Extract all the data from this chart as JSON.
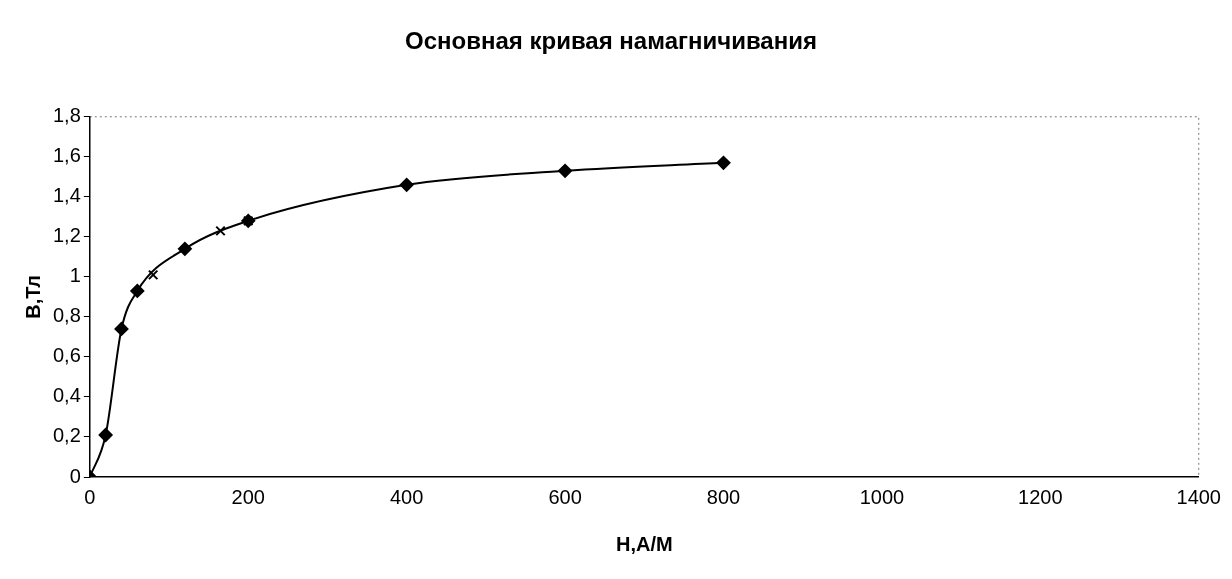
{
  "chart_data": {
    "type": "line",
    "title": "Основная кривая намагничивания",
    "xlabel": "H,A/M",
    "ylabel": "B,Тл",
    "series": [
      {
        "marker": "diamond",
        "color": "#000000",
        "x": [
          0,
          20,
          40,
          60,
          120,
          200,
          400,
          600,
          800
        ],
        "values": [
          0,
          0.21,
          0.74,
          0.93,
          1.14,
          1.28,
          1.46,
          1.53,
          1.57
        ]
      },
      {
        "type": "scatter",
        "marker": "cross",
        "color": "#000000",
        "x": [
          80,
          165,
          200
        ],
        "values": [
          1.01,
          1.23,
          1.28
        ]
      }
    ],
    "xlim": [
      0,
      1400
    ],
    "xticks": [
      0,
      200,
      400,
      600,
      800,
      1000,
      1200,
      1400
    ],
    "ylim": [
      0,
      1.8
    ],
    "yticks": [
      0,
      {
        "value": 0.2,
        "label": "0,2"
      },
      {
        "value": 0.4,
        "label": "0,4"
      },
      {
        "value": 0.6,
        "label": "0,6"
      },
      {
        "value": 0.8,
        "label": "0,8"
      },
      1,
      {
        "value": 1.2,
        "label": "1,2"
      },
      {
        "value": 1.4,
        "label": "1,4"
      },
      {
        "value": 1.6,
        "label": "1,6"
      },
      {
        "value": 1.8,
        "label": "1,8"
      }
    ],
    "grid": false,
    "legend": false
  }
}
